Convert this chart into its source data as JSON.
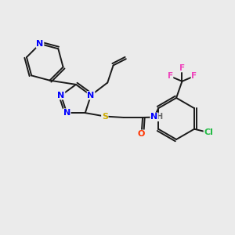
{
  "background_color": "#ebebeb",
  "bond_color": "#1a1a1a",
  "atom_colors": {
    "N": "#0000ff",
    "S": "#ccaa00",
    "O": "#ff3300",
    "F": "#ee44bb",
    "Cl": "#22bb44",
    "H": "#666666",
    "C": "#1a1a1a"
  },
  "figsize": [
    3.0,
    3.0
  ],
  "dpi": 100
}
